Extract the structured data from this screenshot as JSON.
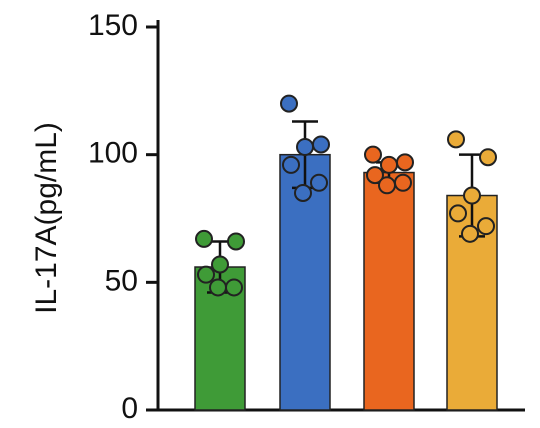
{
  "chart_data": {
    "type": "bar",
    "ylabel": "IL-17A(pg/mL)",
    "categories": [
      null,
      null,
      null,
      null
    ],
    "values": [
      56,
      100,
      93,
      84
    ],
    "errors": [
      10,
      13,
      4,
      16
    ],
    "colors": [
      "#3f9b37",
      "#3b6fc1",
      "#e9661f",
      "#eaab38"
    ],
    "points": [
      [
        67,
        66,
        57,
        53,
        48,
        48
      ],
      [
        120,
        104,
        103,
        96,
        89,
        85
      ],
      [
        100,
        97,
        96,
        92,
        89,
        88
      ],
      [
        106,
        99,
        84,
        77,
        72,
        69
      ]
    ],
    "ylim": [
      0,
      150
    ],
    "yticks": [
      0,
      50,
      100,
      150
    ]
  }
}
